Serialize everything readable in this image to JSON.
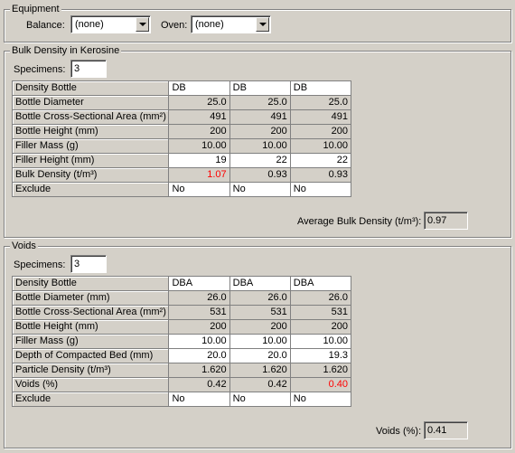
{
  "equipment": {
    "title": "Equipment",
    "balance_label": "Balance:",
    "balance_value": "(none)",
    "oven_label": "Oven:",
    "oven_value": "(none)"
  },
  "bulk": {
    "title": "Bulk Density in Kerosine",
    "specimens_label": "Specimens:",
    "specimens_value": "3",
    "rows": [
      {
        "label": "Density Bottle",
        "values": [
          "DB",
          "DB",
          "DB"
        ],
        "style": "text-edit"
      },
      {
        "label": "Bottle Diameter",
        "values": [
          "25.0",
          "25.0",
          "25.0"
        ],
        "style": "ro"
      },
      {
        "label": "Bottle Cross-Sectional Area (mm²)",
        "values": [
          "491",
          "491",
          "491"
        ],
        "style": "ro"
      },
      {
        "label": "Bottle Height (mm)",
        "values": [
          "200",
          "200",
          "200"
        ],
        "style": "ro"
      },
      {
        "label": "Filler Mass (g)",
        "values": [
          "10.00",
          "10.00",
          "10.00"
        ],
        "style": "ro"
      },
      {
        "label": "Filler Height (mm)",
        "values": [
          "19",
          "22",
          "22"
        ],
        "style": "ed"
      },
      {
        "label": "Bulk Density (t/m³)",
        "values": [
          "1.07",
          "0.93",
          "0.93"
        ],
        "style": "ro",
        "red": [
          0
        ]
      },
      {
        "label": "Exclude",
        "values": [
          "No",
          "No",
          "No"
        ],
        "style": "text-edit"
      }
    ],
    "average_label": "Average Bulk Density (t/m³):",
    "average_value": "0.97"
  },
  "voids": {
    "title": "Voids",
    "specimens_label": "Specimens:",
    "specimens_value": "3",
    "rows": [
      {
        "label": "Density Bottle",
        "values": [
          "DBA",
          "DBA",
          "DBA"
        ],
        "style": "text-edit"
      },
      {
        "label": "Bottle Diameter (mm)",
        "values": [
          "26.0",
          "26.0",
          "26.0"
        ],
        "style": "ro"
      },
      {
        "label": "Bottle Cross-Sectional Area (mm²)",
        "values": [
          "531",
          "531",
          "531"
        ],
        "style": "ro"
      },
      {
        "label": "Bottle Height (mm)",
        "values": [
          "200",
          "200",
          "200"
        ],
        "style": "ro"
      },
      {
        "label": "Filler Mass (g)",
        "values": [
          "10.00",
          "10.00",
          "10.00"
        ],
        "style": "ed"
      },
      {
        "label": "Depth of Compacted Bed (mm)",
        "values": [
          "20.0",
          "20.0",
          "19.3"
        ],
        "style": "ed"
      },
      {
        "label": "Particle Density (t/m³)",
        "values": [
          "1.620",
          "1.620",
          "1.620"
        ],
        "style": "ro"
      },
      {
        "label": "Voids (%)",
        "values": [
          "0.42",
          "0.42",
          "0.40"
        ],
        "style": "ro",
        "red": [
          2
        ]
      },
      {
        "label": "Exclude",
        "values": [
          "No",
          "No",
          "No"
        ],
        "style": "text-edit"
      }
    ],
    "result_label": "Voids (%):",
    "result_value": "0.41"
  }
}
